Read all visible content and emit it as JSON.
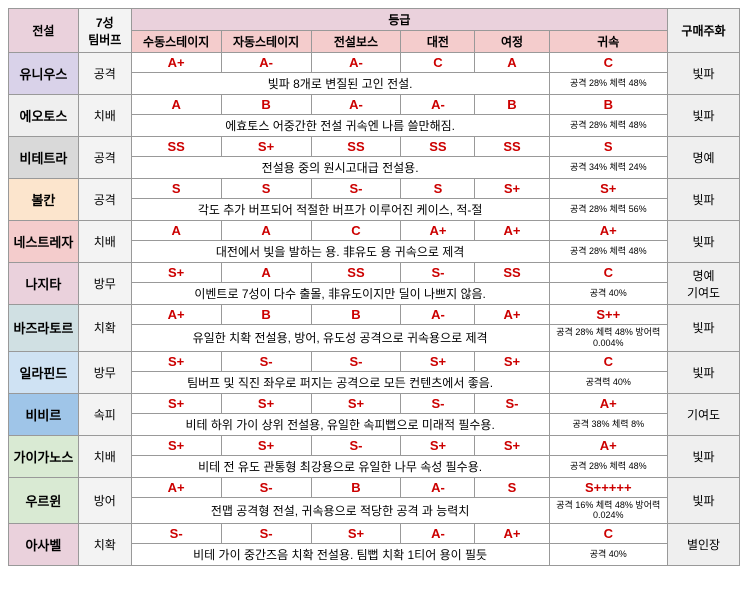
{
  "headers": {
    "legend": "전설",
    "buff": "7성\n팀버프",
    "grade": "등급",
    "currency": "구매주화",
    "sub": {
      "manual": "수동스테이지",
      "auto": "자동스테이지",
      "boss": "전설보스",
      "battle": "대전",
      "journey": "여정",
      "return": "귀속"
    }
  },
  "rowColors": {
    "r0": "#d9d2e9",
    "r1": "#efefef",
    "r2": "#d9d9d9",
    "r3": "#fce5cd",
    "r4": "#f4cccc",
    "r5": "#ead1dc",
    "r6": "#d0e0e3",
    "r7": "#cfe2f3",
    "r8": "#9fc5e8",
    "r9": "#d9ead3",
    "r10": "#d9ead3",
    "r11": "#ead1dc"
  },
  "rows": [
    {
      "name": "유니우스",
      "buff": "공격",
      "grades": [
        "A+",
        "A-",
        "A-",
        "C",
        "A",
        "C"
      ],
      "desc": "빛파 8개로 변질된 고인 전설.",
      "stat": "공격 28% 체력 48%",
      "currency": "빛파"
    },
    {
      "name": "에오토스",
      "buff": "치배",
      "grades": [
        "A",
        "B",
        "A-",
        "A-",
        "B",
        "B"
      ],
      "desc": "에효토스 어중간한 전설 귀속엔 나름 쓸만해짐.",
      "stat": "공격 28% 체력 48%",
      "currency": "빛파"
    },
    {
      "name": "비테트라",
      "buff": "공격",
      "grades": [
        "SS",
        "S+",
        "SS",
        "SS",
        "SS",
        "S"
      ],
      "desc": "전설용 중의 원시고대급 전설용.",
      "stat": "공격 34% 체력 24%",
      "currency": "명예"
    },
    {
      "name": "볼칸",
      "buff": "공격",
      "grades": [
        "S",
        "S",
        "S-",
        "S",
        "S+",
        "S+"
      ],
      "desc": "각도 추가 버프되어 적절한 버프가 이루어진 케이스, 적-절",
      "stat": "공격 28% 체력 56%",
      "currency": "빛파"
    },
    {
      "name": "네스트레자",
      "buff": "치배",
      "grades": [
        "A",
        "A",
        "C",
        "A+",
        "A+",
        "A+"
      ],
      "desc": "대전에서 빛을 발하는 용. 非유도 용 귀속으로 제격",
      "stat": "공격 28% 체력 48%",
      "currency": "빛파"
    },
    {
      "name": "나지타",
      "buff": "방무",
      "grades": [
        "S+",
        "A",
        "SS",
        "S-",
        "SS",
        "C"
      ],
      "desc": "이벤트로 7성이 다수 출몰, 非유도이지만 딜이 나쁘지 않음.",
      "stat": "공격 40%",
      "currency": "명예\n기여도"
    },
    {
      "name": "바즈라토르",
      "buff": "치확",
      "grades": [
        "A+",
        "B",
        "B",
        "A-",
        "A+",
        "S++"
      ],
      "desc": "유일한 치확 전설용, 방어, 유도성 공격으로 귀속용으로 제격",
      "stat": "공격 28% 체력 48% 방어력 0.004%",
      "currency": "빛파"
    },
    {
      "name": "일라핀드",
      "buff": "방무",
      "grades": [
        "S+",
        "S-",
        "S-",
        "S+",
        "S+",
        "C"
      ],
      "desc": "팀버프 및 직진 좌우로 퍼지는 공격으로 모든 컨텐츠에서 좋음.",
      "stat": "공격력 40%",
      "currency": "빛파"
    },
    {
      "name": "비비르",
      "buff": "속피",
      "grades": [
        "S+",
        "S+",
        "S+",
        "S-",
        "S-",
        "A+"
      ],
      "desc": "비테 하위 가이 상위 전설용, 유일한 속피뻡으로 미래적 필수용.",
      "stat": "공격 38% 체력 8%",
      "currency": "기여도"
    },
    {
      "name": "가이가노스",
      "buff": "치배",
      "grades": [
        "S+",
        "S+",
        "S-",
        "S+",
        "S+",
        "A+"
      ],
      "desc": "비테 전 유도 관통형 최강용으로 유일한 나무 속성 필수용.",
      "stat": "공격 28% 체력 48%",
      "currency": "빛파"
    },
    {
      "name": "우르윈",
      "buff": "방어",
      "grades": [
        "A+",
        "S-",
        "B",
        "A-",
        "S",
        "S+++++"
      ],
      "desc": "전맵 공격형 전설, 귀속용으로 적당한 공격 과 능력치",
      "stat": "공격 16% 체력 48% 방어력 0.024%",
      "currency": "빛파"
    },
    {
      "name": "아사벨",
      "buff": "치확",
      "grades": [
        "S-",
        "S-",
        "S+",
        "A-",
        "A+",
        "C"
      ],
      "desc": "비테 가이 중간즈음 치확 전설용. 팀뻡 치확 1티어 용이 필듯",
      "stat": "공격 40%",
      "currency": "별인장"
    }
  ]
}
